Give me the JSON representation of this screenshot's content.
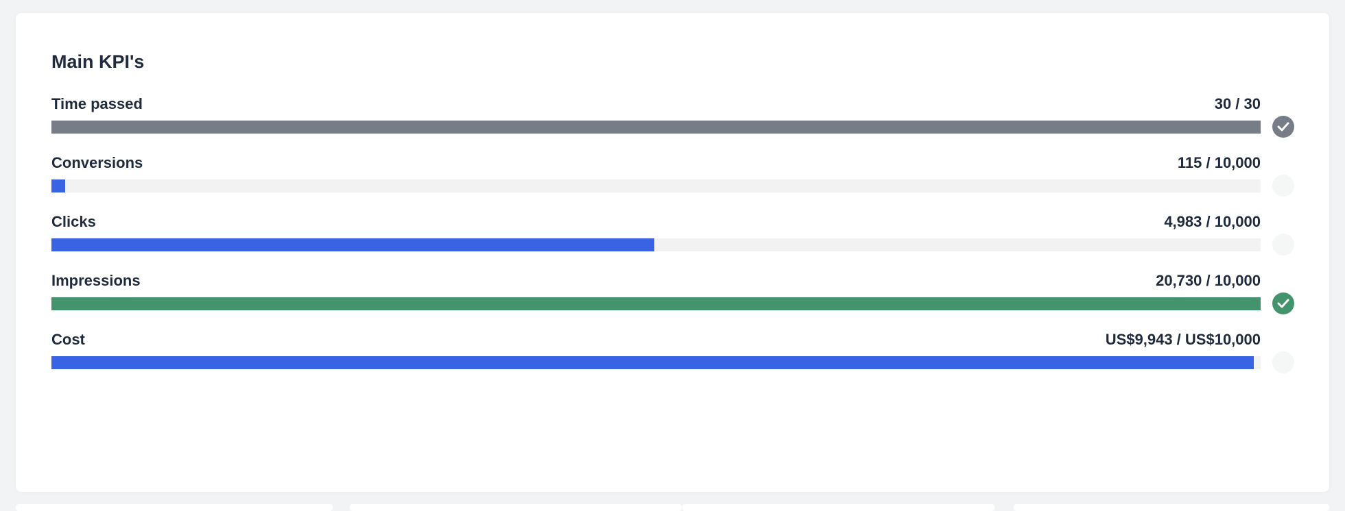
{
  "title": "Main KPI's",
  "colors": {
    "grey": "#777d87",
    "blue": "#3a63e3",
    "green": "#43946c",
    "track": "#f2f2f2"
  },
  "kpis": [
    {
      "label": "Time passed",
      "value": "30 / 30",
      "progress": 1.0,
      "color": "#777d87",
      "status": "check-icon",
      "status_color": "#777d87"
    },
    {
      "label": "Conversions",
      "value": "115 / 10,000",
      "progress": 0.0115,
      "color": "#3a63e3",
      "status": "empty",
      "status_color": "#f5f6f6"
    },
    {
      "label": "Clicks",
      "value": "4,983 / 10,000",
      "progress": 0.4983,
      "color": "#3a63e3",
      "status": "empty",
      "status_color": "#f5f6f6"
    },
    {
      "label": "Impressions",
      "value": "20,730 / 10,000",
      "progress": 1.0,
      "color": "#43946c",
      "status": "check-icon",
      "status_color": "#43946c"
    },
    {
      "label": "Cost",
      "value": "US$9,943 / US$10,000",
      "progress": 0.9943,
      "color": "#3a63e3",
      "status": "empty",
      "status_color": "#f5f6f6"
    }
  ]
}
